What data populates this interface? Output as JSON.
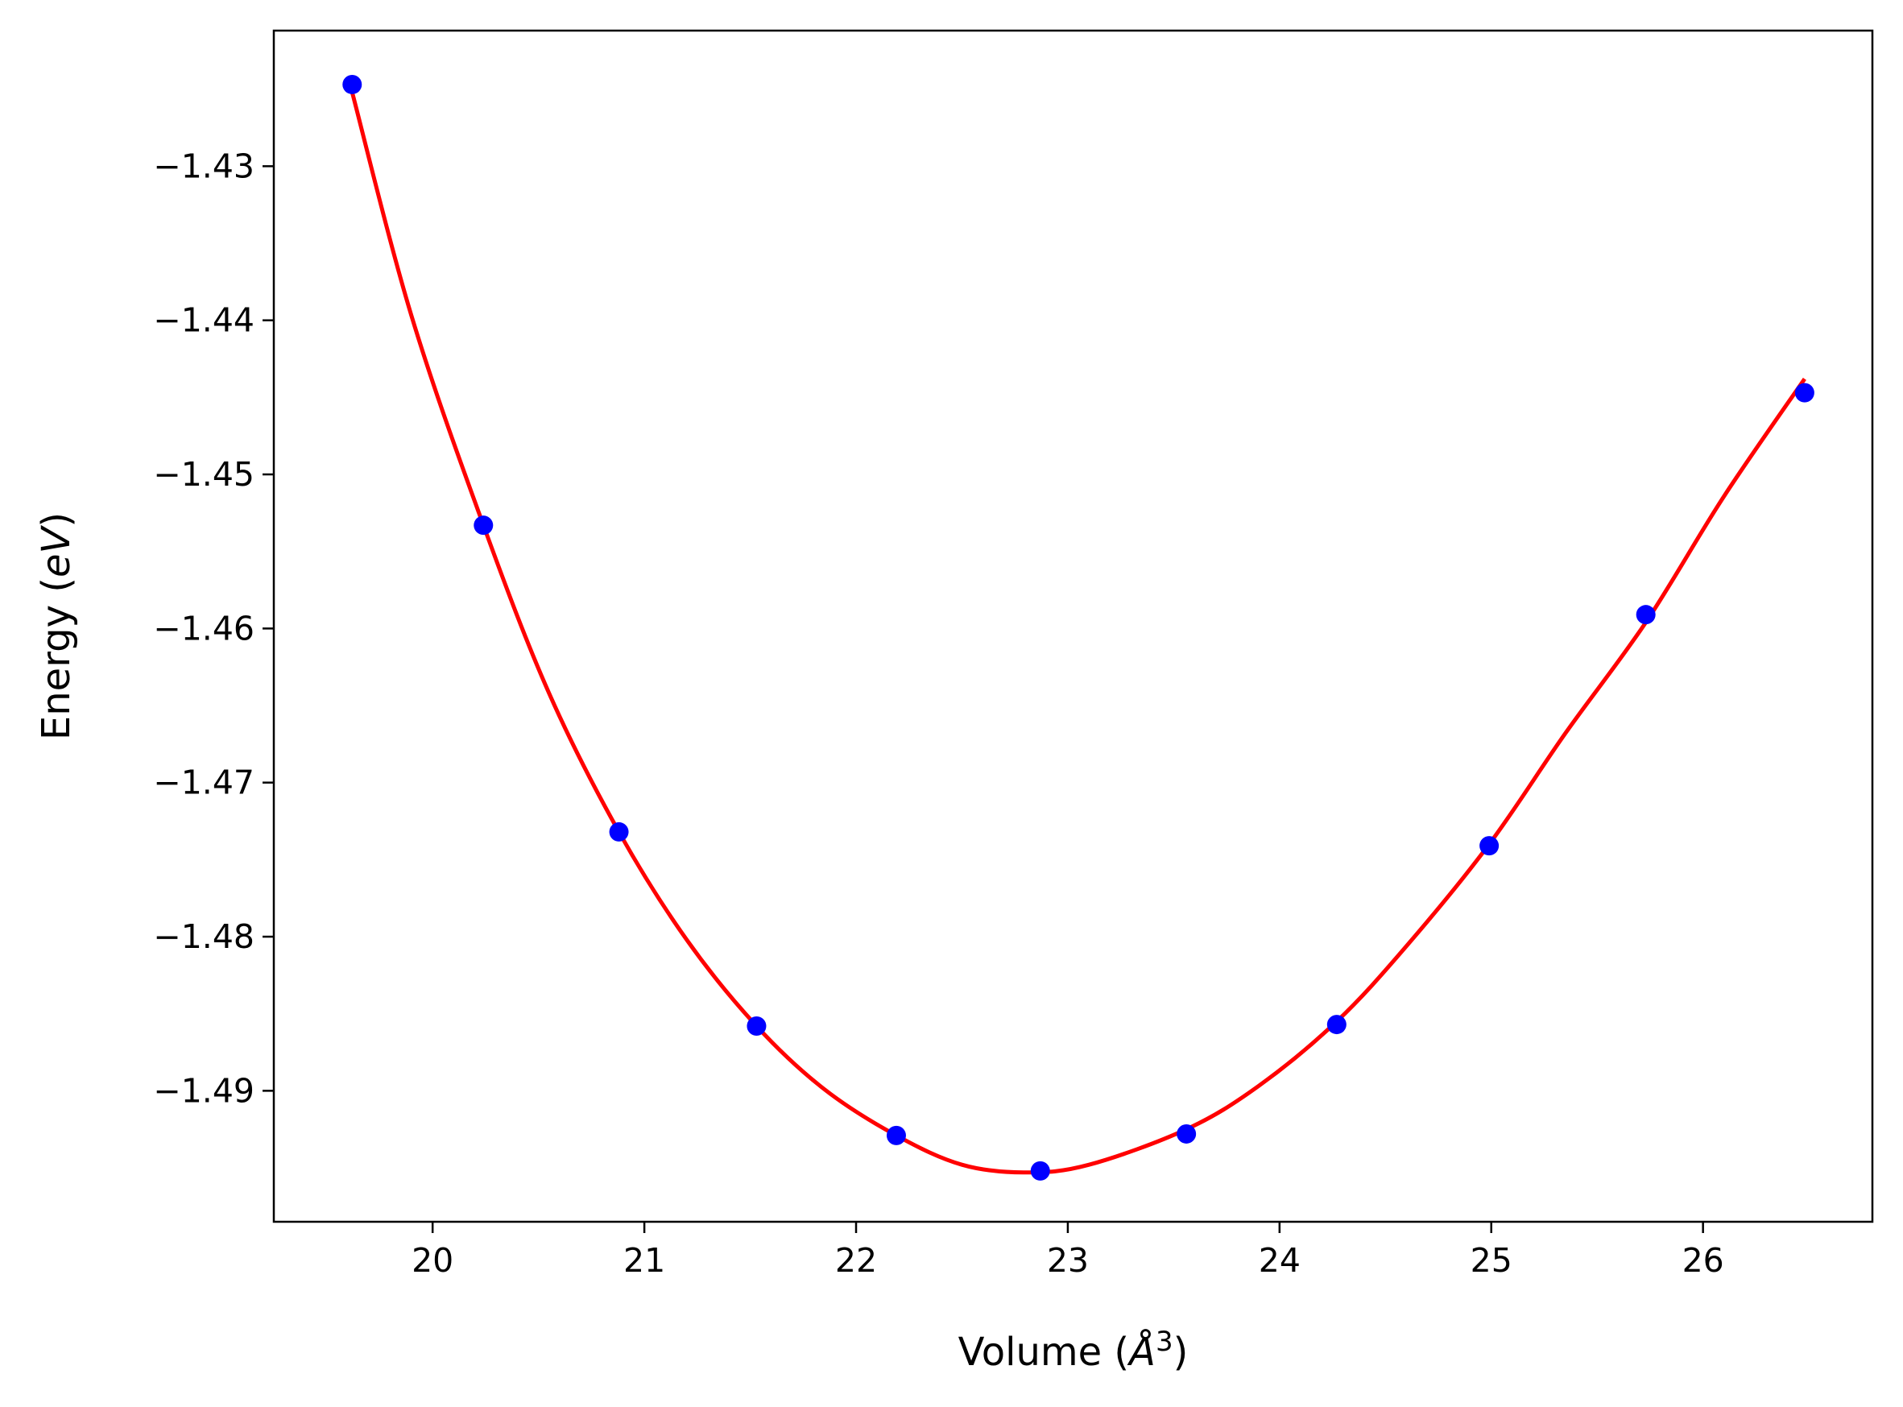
{
  "chart_data": {
    "type": "scatter",
    "xlabel": {
      "text": "Volume (",
      "math": "Å",
      "sup": "3",
      "close": ")"
    },
    "ylabel": {
      "text": "Energy (",
      "math": "eV",
      "close": ")"
    },
    "xlim": [
      19.25,
      26.8
    ],
    "ylim": [
      -1.4985,
      -1.4212
    ],
    "xticks": [
      20,
      21,
      22,
      23,
      24,
      25,
      26
    ],
    "xtick_labels": [
      "20",
      "21",
      "22",
      "23",
      "24",
      "25",
      "26"
    ],
    "yticks": [
      -1.43,
      -1.44,
      -1.45,
      -1.46,
      -1.47,
      -1.48,
      -1.49
    ],
    "ytick_labels": [
      "−1.43",
      "−1.44",
      "−1.45",
      "−1.46",
      "−1.47",
      "−1.48",
      "−1.49"
    ],
    "grid": false,
    "series": [
      {
        "kind": "scatter",
        "color": "#0000ff",
        "x": [
          19.62,
          20.24,
          20.88,
          21.53,
          22.19,
          22.87,
          23.56,
          24.27,
          24.99,
          25.73,
          26.48
        ],
        "y": [
          -1.4247,
          -1.4533,
          -1.4732,
          -1.4858,
          -1.4929,
          -1.4952,
          -1.4928,
          -1.4857,
          -1.4741,
          -1.4591,
          -1.4447
        ]
      },
      {
        "kind": "line",
        "color": "#ff0000",
        "x": [
          19.62,
          19.9,
          20.24,
          20.55,
          20.88,
          21.2,
          21.53,
          21.85,
          22.19,
          22.5,
          22.8,
          23.1,
          23.56,
          23.9,
          24.27,
          24.6,
          24.99,
          25.35,
          25.73,
          26.1,
          26.48
        ],
        "y": [
          -1.4252,
          -1.4397,
          -1.4533,
          -1.4642,
          -1.4732,
          -1.4802,
          -1.4858,
          -1.4899,
          -1.4929,
          -1.4948,
          -1.4953,
          -1.4948,
          -1.4925,
          -1.4897,
          -1.4855,
          -1.4806,
          -1.474,
          -1.4668,
          -1.4596,
          -1.4514,
          -1.4438
        ]
      }
    ]
  }
}
